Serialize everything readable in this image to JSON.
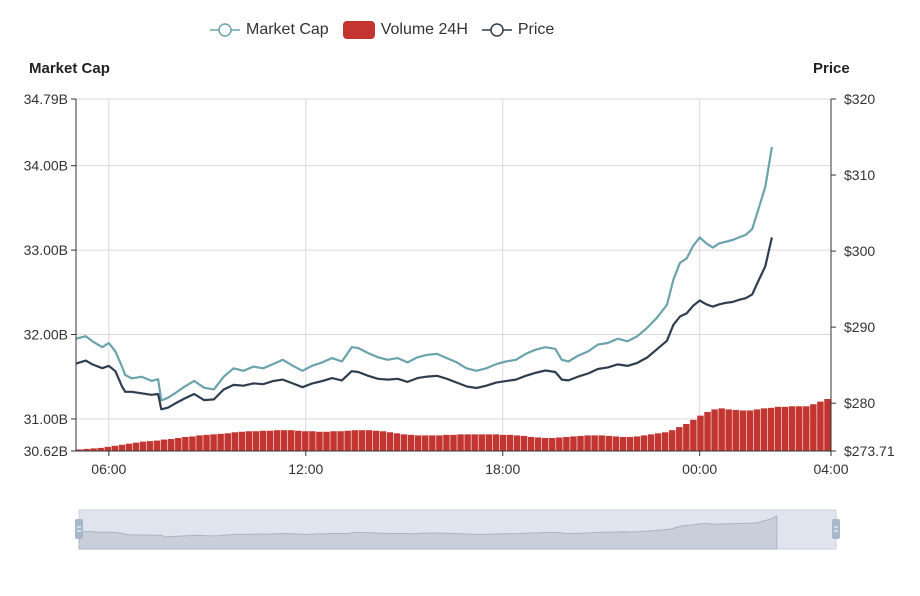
{
  "legend": {
    "market_cap": "Market Cap",
    "volume": "Volume 24H",
    "price": "Price"
  },
  "axes": {
    "left_title": "Market Cap",
    "right_title": "Price",
    "left_ticks": [
      "34.79B",
      "34.00B",
      "33.00B",
      "32.00B",
      "31.00B",
      "30.62B"
    ],
    "right_ticks": [
      "$320",
      "$310",
      "$300",
      "$290",
      "$280",
      "$273.71"
    ],
    "x_ticks": [
      "06:00",
      "12:00",
      "18:00",
      "00:00",
      "04:00"
    ]
  },
  "colors": {
    "market_cap": "#6aa3ac",
    "price": "#2f3e4e",
    "volume": "#c23531",
    "grid": "#d9d9d9",
    "slider_fill": "#dfe4ee",
    "slider_handle": "#a7b7cc"
  },
  "chart_data": {
    "type": "line",
    "title": "",
    "x_unit": "hours",
    "x_range": [
      "05:00",
      "04:00"
    ],
    "ylim_left": [
      30.62,
      34.79
    ],
    "ylim_right": [
      273.71,
      320
    ],
    "grid": true,
    "legend_position": "top-center",
    "series": [
      {
        "name": "Market Cap",
        "axis": "left",
        "unit": "B",
        "points": [
          [
            0,
            31.95
          ],
          [
            0.3,
            31.98
          ],
          [
            0.5,
            31.92
          ],
          [
            0.8,
            31.85
          ],
          [
            1.0,
            31.9
          ],
          [
            1.2,
            31.8
          ],
          [
            1.4,
            31.62
          ],
          [
            1.5,
            31.52
          ],
          [
            1.7,
            31.48
          ],
          [
            2.0,
            31.5
          ],
          [
            2.3,
            31.45
          ],
          [
            2.5,
            31.47
          ],
          [
            2.6,
            31.22
          ],
          [
            2.8,
            31.25
          ],
          [
            3.0,
            31.3
          ],
          [
            3.3,
            31.38
          ],
          [
            3.6,
            31.45
          ],
          [
            3.9,
            31.37
          ],
          [
            4.2,
            31.35
          ],
          [
            4.5,
            31.5
          ],
          [
            4.8,
            31.6
          ],
          [
            5.1,
            31.57
          ],
          [
            5.4,
            31.62
          ],
          [
            5.7,
            31.6
          ],
          [
            6.0,
            31.65
          ],
          [
            6.3,
            31.7
          ],
          [
            6.6,
            31.63
          ],
          [
            6.9,
            31.57
          ],
          [
            7.2,
            31.63
          ],
          [
            7.5,
            31.67
          ],
          [
            7.8,
            31.72
          ],
          [
            8.1,
            31.68
          ],
          [
            8.4,
            31.85
          ],
          [
            8.6,
            31.84
          ],
          [
            8.9,
            31.78
          ],
          [
            9.2,
            31.73
          ],
          [
            9.5,
            31.7
          ],
          [
            9.8,
            31.72
          ],
          [
            10.1,
            31.67
          ],
          [
            10.4,
            31.73
          ],
          [
            10.7,
            31.76
          ],
          [
            11.0,
            31.77
          ],
          [
            11.3,
            31.72
          ],
          [
            11.6,
            31.67
          ],
          [
            11.9,
            31.6
          ],
          [
            12.2,
            31.57
          ],
          [
            12.5,
            31.6
          ],
          [
            12.8,
            31.65
          ],
          [
            13.1,
            31.68
          ],
          [
            13.4,
            31.7
          ],
          [
            13.7,
            31.77
          ],
          [
            14.0,
            31.82
          ],
          [
            14.3,
            31.85
          ],
          [
            14.6,
            31.83
          ],
          [
            14.8,
            31.7
          ],
          [
            15.0,
            31.68
          ],
          [
            15.3,
            31.75
          ],
          [
            15.6,
            31.8
          ],
          [
            15.9,
            31.88
          ],
          [
            16.2,
            31.9
          ],
          [
            16.5,
            31.95
          ],
          [
            16.8,
            31.92
          ],
          [
            17.1,
            31.98
          ],
          [
            17.4,
            32.08
          ],
          [
            17.7,
            32.2
          ],
          [
            18.0,
            32.35
          ],
          [
            18.2,
            32.65
          ],
          [
            18.4,
            32.85
          ],
          [
            18.6,
            32.9
          ],
          [
            18.8,
            33.05
          ],
          [
            19.0,
            33.15
          ],
          [
            19.2,
            33.08
          ],
          [
            19.4,
            33.03
          ],
          [
            19.6,
            33.08
          ],
          [
            19.8,
            33.1
          ],
          [
            20.0,
            33.12
          ],
          [
            20.2,
            33.15
          ],
          [
            20.4,
            33.18
          ],
          [
            20.6,
            33.25
          ],
          [
            20.8,
            33.5
          ],
          [
            21.0,
            33.75
          ],
          [
            21.2,
            34.22
          ]
        ]
      },
      {
        "name": "Price",
        "axis": "right",
        "unit": "$",
        "points": [
          [
            0,
            285.2
          ],
          [
            0.3,
            285.6
          ],
          [
            0.5,
            285.1
          ],
          [
            0.8,
            284.6
          ],
          [
            1.0,
            284.9
          ],
          [
            1.2,
            284.2
          ],
          [
            1.4,
            282.2
          ],
          [
            1.5,
            281.5
          ],
          [
            1.7,
            281.5
          ],
          [
            2.0,
            281.3
          ],
          [
            2.3,
            281.1
          ],
          [
            2.5,
            281.2
          ],
          [
            2.6,
            279.2
          ],
          [
            2.8,
            279.4
          ],
          [
            3.0,
            279.9
          ],
          [
            3.3,
            280.6
          ],
          [
            3.6,
            281.2
          ],
          [
            3.9,
            280.4
          ],
          [
            4.2,
            280.5
          ],
          [
            4.5,
            281.8
          ],
          [
            4.8,
            282.4
          ],
          [
            5.1,
            282.3
          ],
          [
            5.4,
            282.6
          ],
          [
            5.7,
            282.5
          ],
          [
            6.0,
            282.9
          ],
          [
            6.3,
            283.1
          ],
          [
            6.6,
            282.6
          ],
          [
            6.9,
            282.1
          ],
          [
            7.2,
            282.6
          ],
          [
            7.5,
            282.9
          ],
          [
            7.8,
            283.3
          ],
          [
            8.1,
            283.0
          ],
          [
            8.4,
            284.2
          ],
          [
            8.6,
            284.1
          ],
          [
            8.9,
            283.6
          ],
          [
            9.2,
            283.2
          ],
          [
            9.5,
            283.1
          ],
          [
            9.8,
            283.2
          ],
          [
            10.1,
            282.8
          ],
          [
            10.4,
            283.3
          ],
          [
            10.7,
            283.5
          ],
          [
            11.0,
            283.6
          ],
          [
            11.3,
            283.2
          ],
          [
            11.6,
            282.7
          ],
          [
            11.9,
            282.2
          ],
          [
            12.2,
            282.0
          ],
          [
            12.5,
            282.3
          ],
          [
            12.8,
            282.7
          ],
          [
            13.1,
            282.9
          ],
          [
            13.4,
            283.1
          ],
          [
            13.7,
            283.6
          ],
          [
            14.0,
            284.0
          ],
          [
            14.3,
            284.3
          ],
          [
            14.6,
            284.1
          ],
          [
            14.8,
            283.1
          ],
          [
            15.0,
            283.0
          ],
          [
            15.3,
            283.5
          ],
          [
            15.6,
            283.9
          ],
          [
            15.9,
            284.5
          ],
          [
            16.2,
            284.7
          ],
          [
            16.5,
            285.1
          ],
          [
            16.8,
            284.9
          ],
          [
            17.1,
            285.3
          ],
          [
            17.4,
            286.0
          ],
          [
            17.7,
            287.1
          ],
          [
            18.0,
            288.2
          ],
          [
            18.2,
            290.3
          ],
          [
            18.4,
            291.4
          ],
          [
            18.6,
            291.8
          ],
          [
            18.8,
            292.8
          ],
          [
            19.0,
            293.5
          ],
          [
            19.2,
            293.0
          ],
          [
            19.4,
            292.7
          ],
          [
            19.6,
            293.0
          ],
          [
            19.8,
            293.2
          ],
          [
            20.0,
            293.3
          ],
          [
            20.2,
            293.6
          ],
          [
            20.4,
            293.8
          ],
          [
            20.6,
            294.3
          ],
          [
            20.8,
            296.2
          ],
          [
            21.0,
            298.0
          ],
          [
            21.2,
            301.8
          ]
        ]
      },
      {
        "name": "Volume 24H",
        "type": "bar",
        "axis": "hidden",
        "relative_values": [
          0.03,
          0.04,
          0.05,
          0.06,
          0.08,
          0.1,
          0.12,
          0.14,
          0.16,
          0.18,
          0.19,
          0.2,
          0.22,
          0.23,
          0.25,
          0.27,
          0.28,
          0.3,
          0.31,
          0.32,
          0.33,
          0.34,
          0.36,
          0.37,
          0.38,
          0.38,
          0.39,
          0.39,
          0.4,
          0.4,
          0.4,
          0.39,
          0.38,
          0.38,
          0.37,
          0.37,
          0.38,
          0.38,
          0.39,
          0.4,
          0.4,
          0.4,
          0.39,
          0.38,
          0.36,
          0.34,
          0.32,
          0.31,
          0.3,
          0.3,
          0.3,
          0.3,
          0.31,
          0.31,
          0.32,
          0.32,
          0.32,
          0.32,
          0.32,
          0.32,
          0.31,
          0.31,
          0.3,
          0.29,
          0.27,
          0.26,
          0.25,
          0.25,
          0.26,
          0.27,
          0.28,
          0.29,
          0.3,
          0.3,
          0.3,
          0.29,
          0.28,
          0.27,
          0.27,
          0.28,
          0.3,
          0.32,
          0.34,
          0.36,
          0.4,
          0.46,
          0.52,
          0.6,
          0.68,
          0.75,
          0.8,
          0.82,
          0.8,
          0.79,
          0.78,
          0.78,
          0.8,
          0.82,
          0.83,
          0.85,
          0.85,
          0.86,
          0.86,
          0.86,
          0.9,
          0.95,
          1.0
        ]
      }
    ]
  }
}
